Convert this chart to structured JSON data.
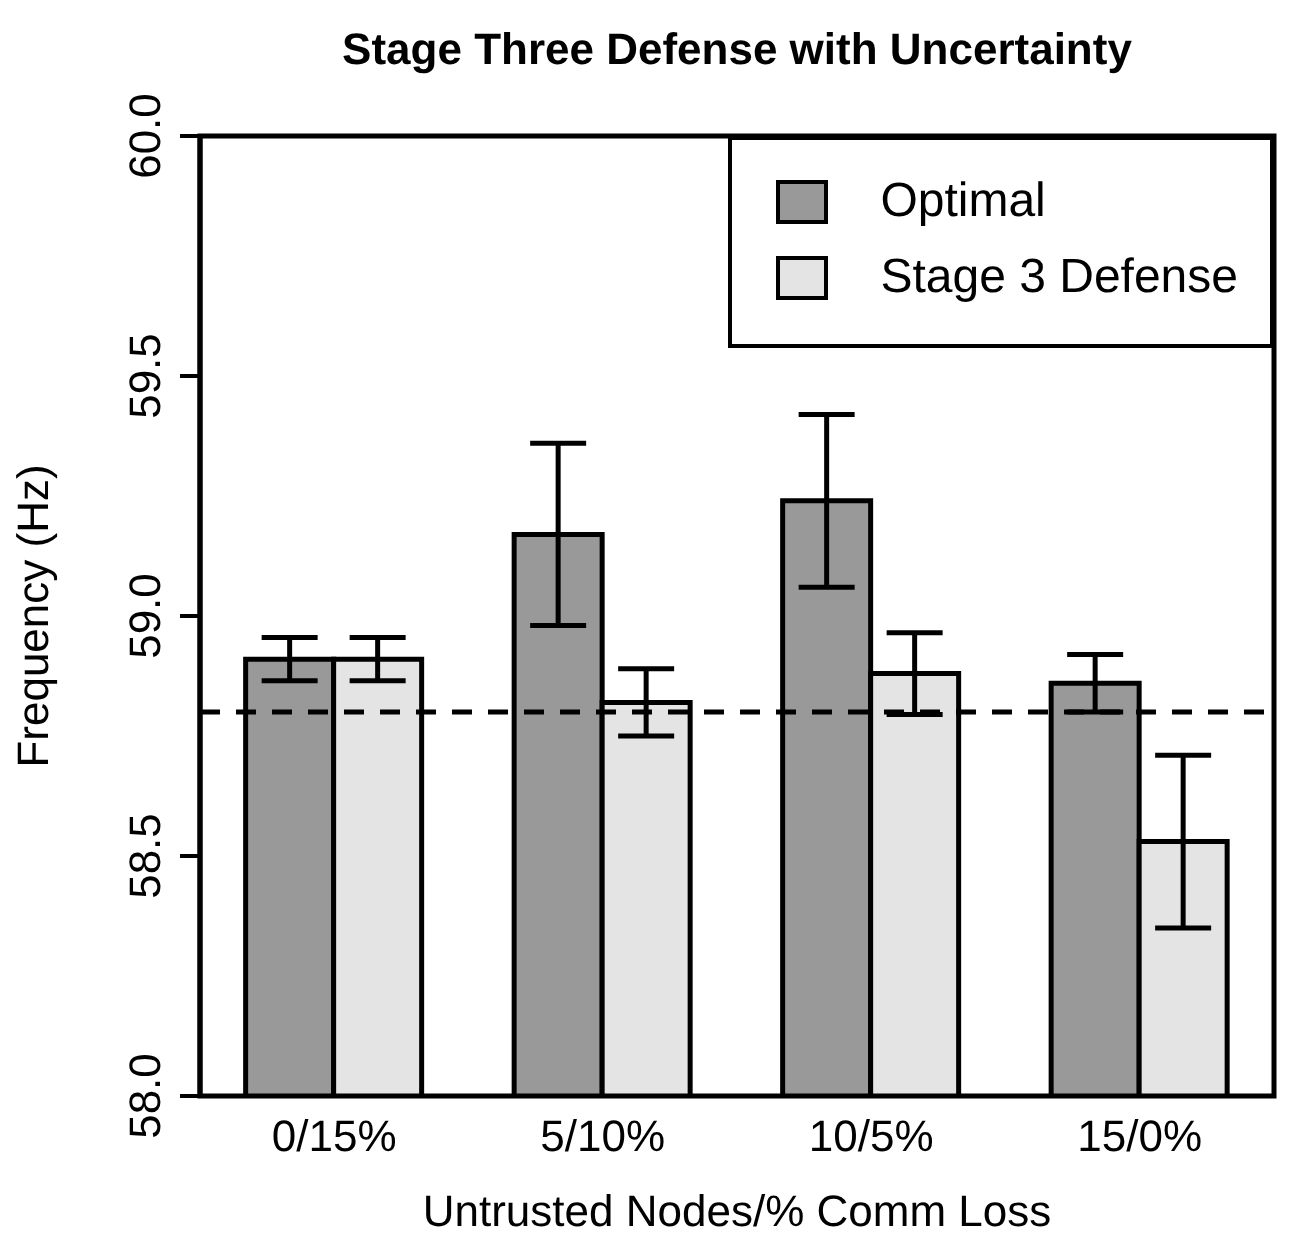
{
  "chart_data": {
    "type": "bar",
    "title": "Stage Three Defense with Uncertainty",
    "xlabel": "Untrusted Nodes/% Comm Loss",
    "ylabel": "Frequency (Hz)",
    "categories": [
      "0/15%",
      "5/10%",
      "10/5%",
      "15/0%"
    ],
    "series": [
      {
        "name": "Optimal",
        "color": "#999999",
        "values": [
          58.91,
          59.17,
          59.24,
          58.86
        ],
        "errors": [
          0.045,
          0.19,
          0.18,
          0.06
        ]
      },
      {
        "name": "Stage 3 Defense",
        "color": "#e4e4e4",
        "values": [
          58.91,
          58.82,
          58.88,
          58.53
        ],
        "errors": [
          0.045,
          0.07,
          0.085,
          0.18
        ]
      }
    ],
    "ylim": [
      58,
      60
    ],
    "yticks": [
      {
        "value": 58,
        "label": "58.0"
      },
      {
        "value": 58.5,
        "label": "58.5"
      },
      {
        "value": 59,
        "label": "59.0"
      },
      {
        "value": 59.5,
        "label": "59.5"
      },
      {
        "value": 60,
        "label": "60.0"
      }
    ],
    "ref_lines": [
      {
        "axis": "y",
        "value": 58.8,
        "line_style": "dashed",
        "color": "#000000"
      }
    ],
    "legend": "top right",
    "grid": false
  }
}
